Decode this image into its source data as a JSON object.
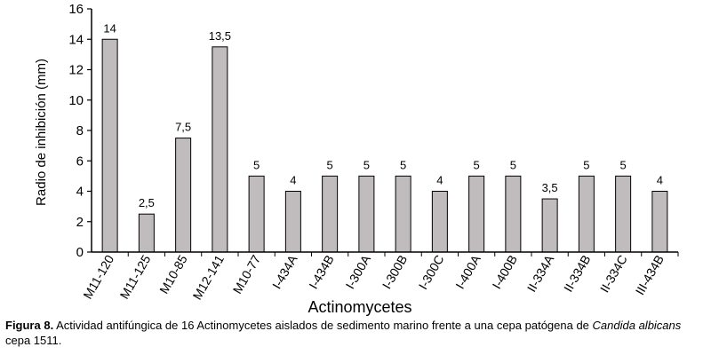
{
  "chart_data": {
    "type": "bar",
    "categories": [
      "M11-120",
      "M11-125",
      "M10-85",
      "M12-141",
      "M10-77",
      "I-434A",
      "I-434B",
      "I-300A",
      "I-300B",
      "I-300C",
      "I-400A",
      "I-400B",
      "II-334A",
      "II-334B",
      "II-334C",
      "III-434B"
    ],
    "values": [
      14,
      2.5,
      7.5,
      13.5,
      5,
      4,
      5,
      5,
      5,
      4,
      5,
      5,
      3.5,
      5,
      5,
      4
    ],
    "data_labels": [
      "14",
      "2,5",
      "7,5",
      "13,5",
      "5",
      "4",
      "5",
      "5",
      "5",
      "4",
      "5",
      "5",
      "3,5",
      "5",
      "5",
      "4"
    ],
    "xlabel": "Actinomycetes",
    "ylabel": "Radio de inhibición (mm)",
    "ylim": [
      0,
      16
    ],
    "yticks": [
      0,
      2,
      4,
      6,
      8,
      10,
      12,
      14,
      16
    ],
    "grid": false,
    "legend": "none",
    "bar_color": "#c0bcbd"
  },
  "caption": {
    "label": "Figura 8.",
    "text": " Actividad antifúngica de 16 Actinomycetes aislados de sedimento marino frente a una cepa patógena de ",
    "species": "Candida albicans",
    "suffix": " cepa 1511."
  }
}
